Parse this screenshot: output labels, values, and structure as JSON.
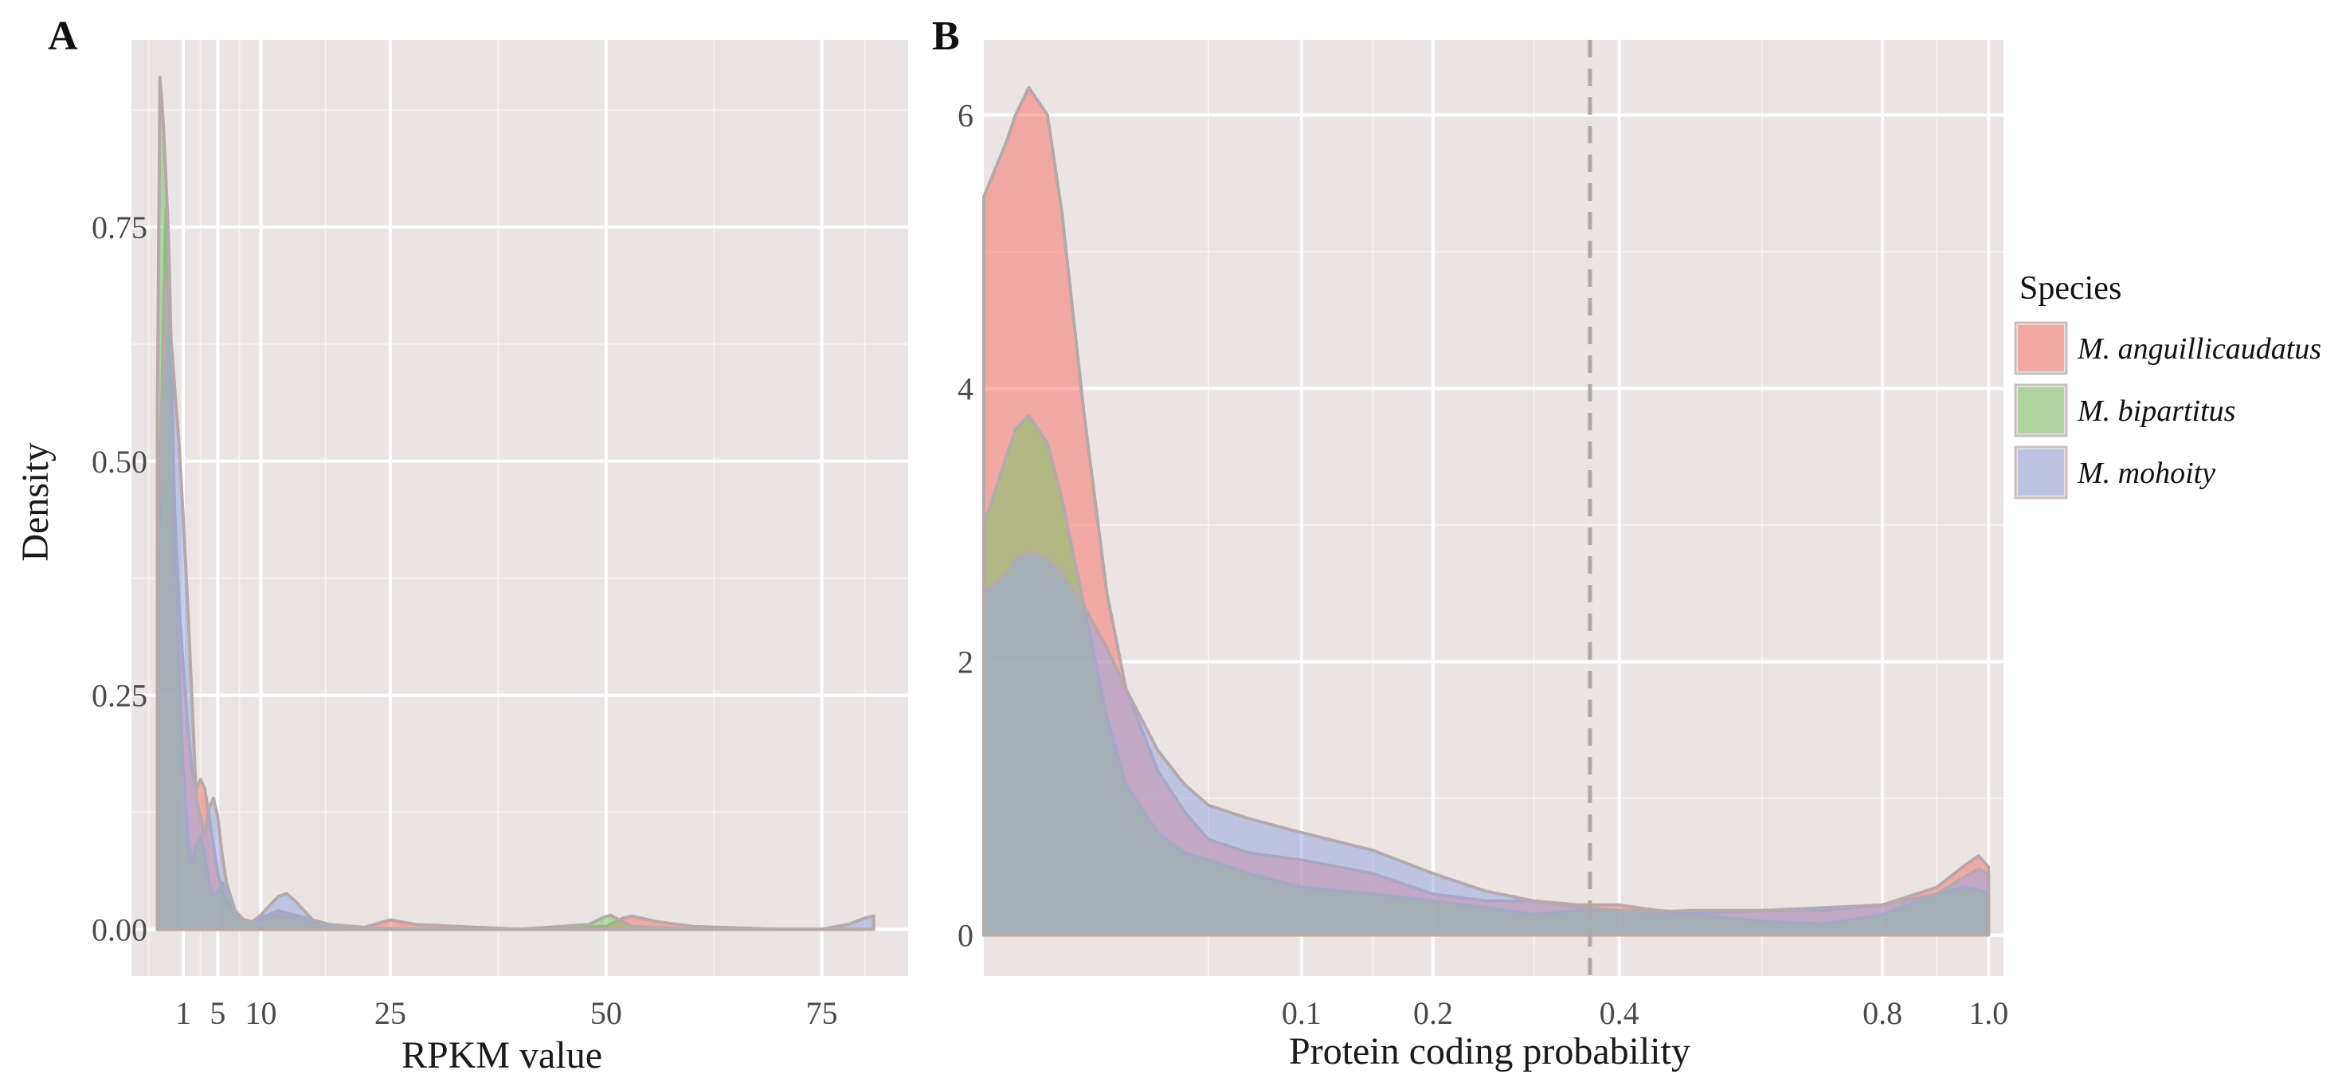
{
  "legend": {
    "title": "Species",
    "placement": "right",
    "entries": [
      {
        "label": "M. anguillicaudatus",
        "color": "#f8766d"
      },
      {
        "label": "M. bipartitus",
        "color": "#7cc46a"
      },
      {
        "label": "M. mohoity",
        "color": "#9aa8e0"
      }
    ]
  },
  "chart_data": [
    {
      "panel": "A",
      "type": "area",
      "xlabel": "RPKM value",
      "ylabel": "Density",
      "xlim": [
        -5,
        85
      ],
      "ylim": [
        -0.05,
        0.95
      ],
      "x_ticks": [
        {
          "value": 1,
          "label": "1"
        },
        {
          "value": 5,
          "label": "5"
        },
        {
          "value": 10,
          "label": "10"
        },
        {
          "value": 25,
          "label": "25"
        },
        {
          "value": 50,
          "label": "50"
        },
        {
          "value": 75,
          "label": "75"
        }
      ],
      "x_minor_ticks": [
        -3,
        3,
        7.5,
        17.5,
        37.5,
        62.5,
        80
      ],
      "y_ticks": [
        {
          "value": 0,
          "label": "0.00"
        },
        {
          "value": 0.25,
          "label": "0.25"
        },
        {
          "value": 0.5,
          "label": "0.50"
        },
        {
          "value": 0.75,
          "label": "0.75"
        }
      ],
      "y_minor_ticks": [
        0.125,
        0.375,
        0.625,
        0.875
      ],
      "grid": true,
      "series": [
        {
          "name": "M. anguillicaudatus",
          "x": [
            -2,
            -1.5,
            -1,
            -0.5,
            0,
            0.5,
            1,
            1.5,
            2,
            2.5,
            3,
            3.5,
            4,
            4.5,
            5,
            5.5,
            6,
            7,
            8,
            9,
            10,
            12,
            14,
            16,
            18,
            22,
            25,
            28,
            40,
            50,
            52,
            53,
            54,
            56,
            60,
            70,
            80
          ],
          "y": [
            0.35,
            0.55,
            0.77,
            0.62,
            0.45,
            0.35,
            0.28,
            0.22,
            0.17,
            0.15,
            0.16,
            0.15,
            0.12,
            0.09,
            0.06,
            0.04,
            0.03,
            0.02,
            0.01,
            0.008,
            0.012,
            0.02,
            0.015,
            0.01,
            0.005,
            0.002,
            0.01,
            0.005,
            0,
            0.003,
            0.012,
            0.014,
            0.012,
            0.008,
            0.003,
            0,
            0
          ]
        },
        {
          "name": "M. bipartitus",
          "x": [
            -2,
            -1.7,
            -1.3,
            -1,
            -0.7,
            -0.3,
            0,
            0.5,
            1,
            1.5,
            2,
            2.5,
            3,
            3.5,
            4,
            4.5,
            5,
            5.5,
            6,
            7,
            8,
            9,
            10,
            12,
            14,
            16,
            18,
            22,
            30,
            40,
            48,
            49.5,
            50.5,
            51.5,
            53,
            60,
            70,
            80
          ],
          "y": [
            0.55,
            0.91,
            0.86,
            0.8,
            0.74,
            0.58,
            0.42,
            0.28,
            0.17,
            0.1,
            0.07,
            0.09,
            0.1,
            0.08,
            0.05,
            0.035,
            0.04,
            0.05,
            0.04,
            0.02,
            0.01,
            0.008,
            0.01,
            0.015,
            0.012,
            0.008,
            0.004,
            0.001,
            0,
            0,
            0.005,
            0.012,
            0.015,
            0.01,
            0.003,
            0,
            0,
            0
          ]
        },
        {
          "name": "M. mohoity",
          "x": [
            -2,
            -1.5,
            -1,
            -0.5,
            0,
            0.5,
            1,
            1.5,
            2,
            2.5,
            3,
            3.5,
            4,
            4.5,
            5,
            5.5,
            6,
            7,
            8,
            9,
            10,
            11,
            12,
            13,
            14,
            15,
            16,
            18,
            20,
            25,
            40,
            60,
            75,
            78,
            80,
            81
          ],
          "y": [
            0.4,
            0.55,
            0.69,
            0.64,
            0.58,
            0.52,
            0.44,
            0.35,
            0.25,
            0.14,
            0.12,
            0.1,
            0.13,
            0.14,
            0.12,
            0.08,
            0.05,
            0.02,
            0.01,
            0.008,
            0.015,
            0.025,
            0.035,
            0.038,
            0.03,
            0.02,
            0.01,
            0.005,
            0.002,
            0,
            0,
            0,
            0,
            0.005,
            0.012,
            0.014
          ]
        }
      ]
    },
    {
      "panel": "B",
      "type": "area",
      "xlabel": "Protein coding probability",
      "ylabel": "",
      "x_scale": "sqrt",
      "xlim": [
        0,
        1.03
      ],
      "ylim": [
        -0.3,
        6.55
      ],
      "x_ticks": [
        {
          "value": 0.1,
          "label": "0.1"
        },
        {
          "value": 0.2,
          "label": "0.2"
        },
        {
          "value": 0.4,
          "label": "0.4"
        },
        {
          "value": 0.8,
          "label": "0.8"
        },
        {
          "value": 1.0,
          "label": "1.0"
        }
      ],
      "x_minor_ticks": [
        0.05,
        0.15,
        0.3,
        0.6,
        0.9
      ],
      "y_ticks": [
        {
          "value": 0,
          "label": "0"
        },
        {
          "value": 2,
          "label": "2"
        },
        {
          "value": 4,
          "label": "4"
        },
        {
          "value": 6,
          "label": "6"
        }
      ],
      "y_minor_ticks": [
        1,
        3,
        5
      ],
      "grid": true,
      "reference_line": {
        "x": 0.364,
        "style": "dashed"
      },
      "series": [
        {
          "name": "M. anguillicaudatus",
          "x": [
            0,
            0.0005,
            0.001,
            0.002,
            0.004,
            0.006,
            0.01,
            0.015,
            0.02,
            0.03,
            0.04,
            0.05,
            0.07,
            0.1,
            0.15,
            0.2,
            0.25,
            0.3,
            0.35,
            0.4,
            0.45,
            0.5,
            0.6,
            0.7,
            0.8,
            0.9,
            0.95,
            0.98,
            1.0
          ],
          "y": [
            5.4,
            5.8,
            6.0,
            6.2,
            6.0,
            5.3,
            3.8,
            2.5,
            1.8,
            1.2,
            0.9,
            0.7,
            0.6,
            0.55,
            0.45,
            0.3,
            0.25,
            0.25,
            0.22,
            0.22,
            0.18,
            0.16,
            0.18,
            0.18,
            0.22,
            0.35,
            0.5,
            0.58,
            0.5
          ]
        },
        {
          "name": "M. bipartitus",
          "x": [
            0,
            0.0005,
            0.001,
            0.002,
            0.004,
            0.006,
            0.01,
            0.015,
            0.02,
            0.03,
            0.04,
            0.05,
            0.07,
            0.1,
            0.15,
            0.2,
            0.25,
            0.3,
            0.35,
            0.4,
            0.45,
            0.5,
            0.6,
            0.7,
            0.8,
            0.9,
            0.95,
            0.98,
            1.0
          ],
          "y": [
            3.0,
            3.5,
            3.7,
            3.8,
            3.6,
            3.2,
            2.4,
            1.6,
            1.1,
            0.75,
            0.6,
            0.55,
            0.45,
            0.35,
            0.3,
            0.25,
            0.2,
            0.15,
            0.18,
            0.18,
            0.16,
            0.15,
            0.1,
            0.08,
            0.15,
            0.3,
            0.35,
            0.33,
            0.3
          ]
        },
        {
          "name": "M. mohoity",
          "x": [
            0,
            0.0005,
            0.001,
            0.002,
            0.004,
            0.006,
            0.01,
            0.015,
            0.02,
            0.03,
            0.04,
            0.05,
            0.07,
            0.1,
            0.15,
            0.2,
            0.25,
            0.3,
            0.35,
            0.4,
            0.45,
            0.5,
            0.6,
            0.7,
            0.8,
            0.9,
            0.95,
            0.98,
            1.0
          ],
          "y": [
            2.5,
            2.65,
            2.75,
            2.8,
            2.75,
            2.65,
            2.4,
            2.1,
            1.8,
            1.35,
            1.1,
            0.95,
            0.85,
            0.75,
            0.62,
            0.45,
            0.32,
            0.25,
            0.2,
            0.18,
            0.17,
            0.18,
            0.18,
            0.2,
            0.22,
            0.3,
            0.42,
            0.48,
            0.45
          ]
        }
      ]
    }
  ]
}
